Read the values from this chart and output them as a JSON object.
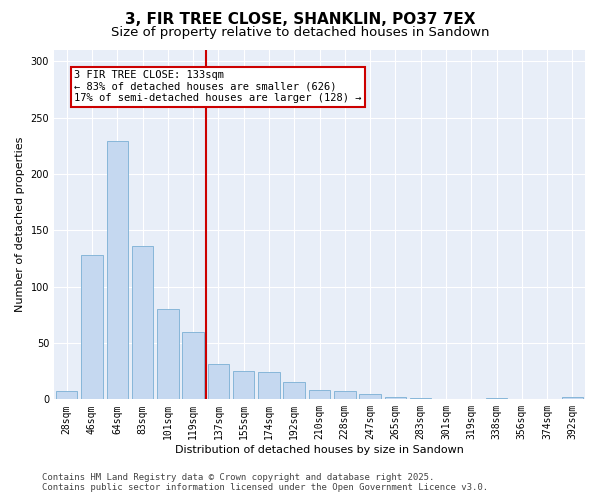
{
  "title": "3, FIR TREE CLOSE, SHANKLIN, PO37 7EX",
  "subtitle": "Size of property relative to detached houses in Sandown",
  "xlabel": "Distribution of detached houses by size in Sandown",
  "ylabel": "Number of detached properties",
  "categories": [
    "28sqm",
    "46sqm",
    "64sqm",
    "83sqm",
    "101sqm",
    "119sqm",
    "137sqm",
    "155sqm",
    "174sqm",
    "192sqm",
    "210sqm",
    "228sqm",
    "247sqm",
    "265sqm",
    "283sqm",
    "301sqm",
    "319sqm",
    "338sqm",
    "356sqm",
    "374sqm",
    "392sqm"
  ],
  "values": [
    7,
    128,
    229,
    136,
    80,
    60,
    31,
    25,
    24,
    15,
    8,
    7,
    5,
    2,
    1,
    0,
    0,
    1,
    0,
    0,
    2
  ],
  "bar_color": "#c5d8f0",
  "bar_edge_color": "#7aafd4",
  "marker_line_color": "#cc0000",
  "annotation_line1": "3 FIR TREE CLOSE: 133sqm",
  "annotation_line2": "← 83% of detached houses are smaller (626)",
  "annotation_line3": "17% of semi-detached houses are larger (128) →",
  "annotation_box_edgecolor": "#cc0000",
  "ylim": [
    0,
    310
  ],
  "yticks": [
    0,
    50,
    100,
    150,
    200,
    250,
    300
  ],
  "background_color": "#e8eef8",
  "footer_line1": "Contains HM Land Registry data © Crown copyright and database right 2025.",
  "footer_line2": "Contains public sector information licensed under the Open Government Licence v3.0.",
  "title_fontsize": 11,
  "subtitle_fontsize": 9.5,
  "label_fontsize": 8,
  "tick_fontsize": 7,
  "footer_fontsize": 6.5,
  "annotation_fontsize": 7.5
}
